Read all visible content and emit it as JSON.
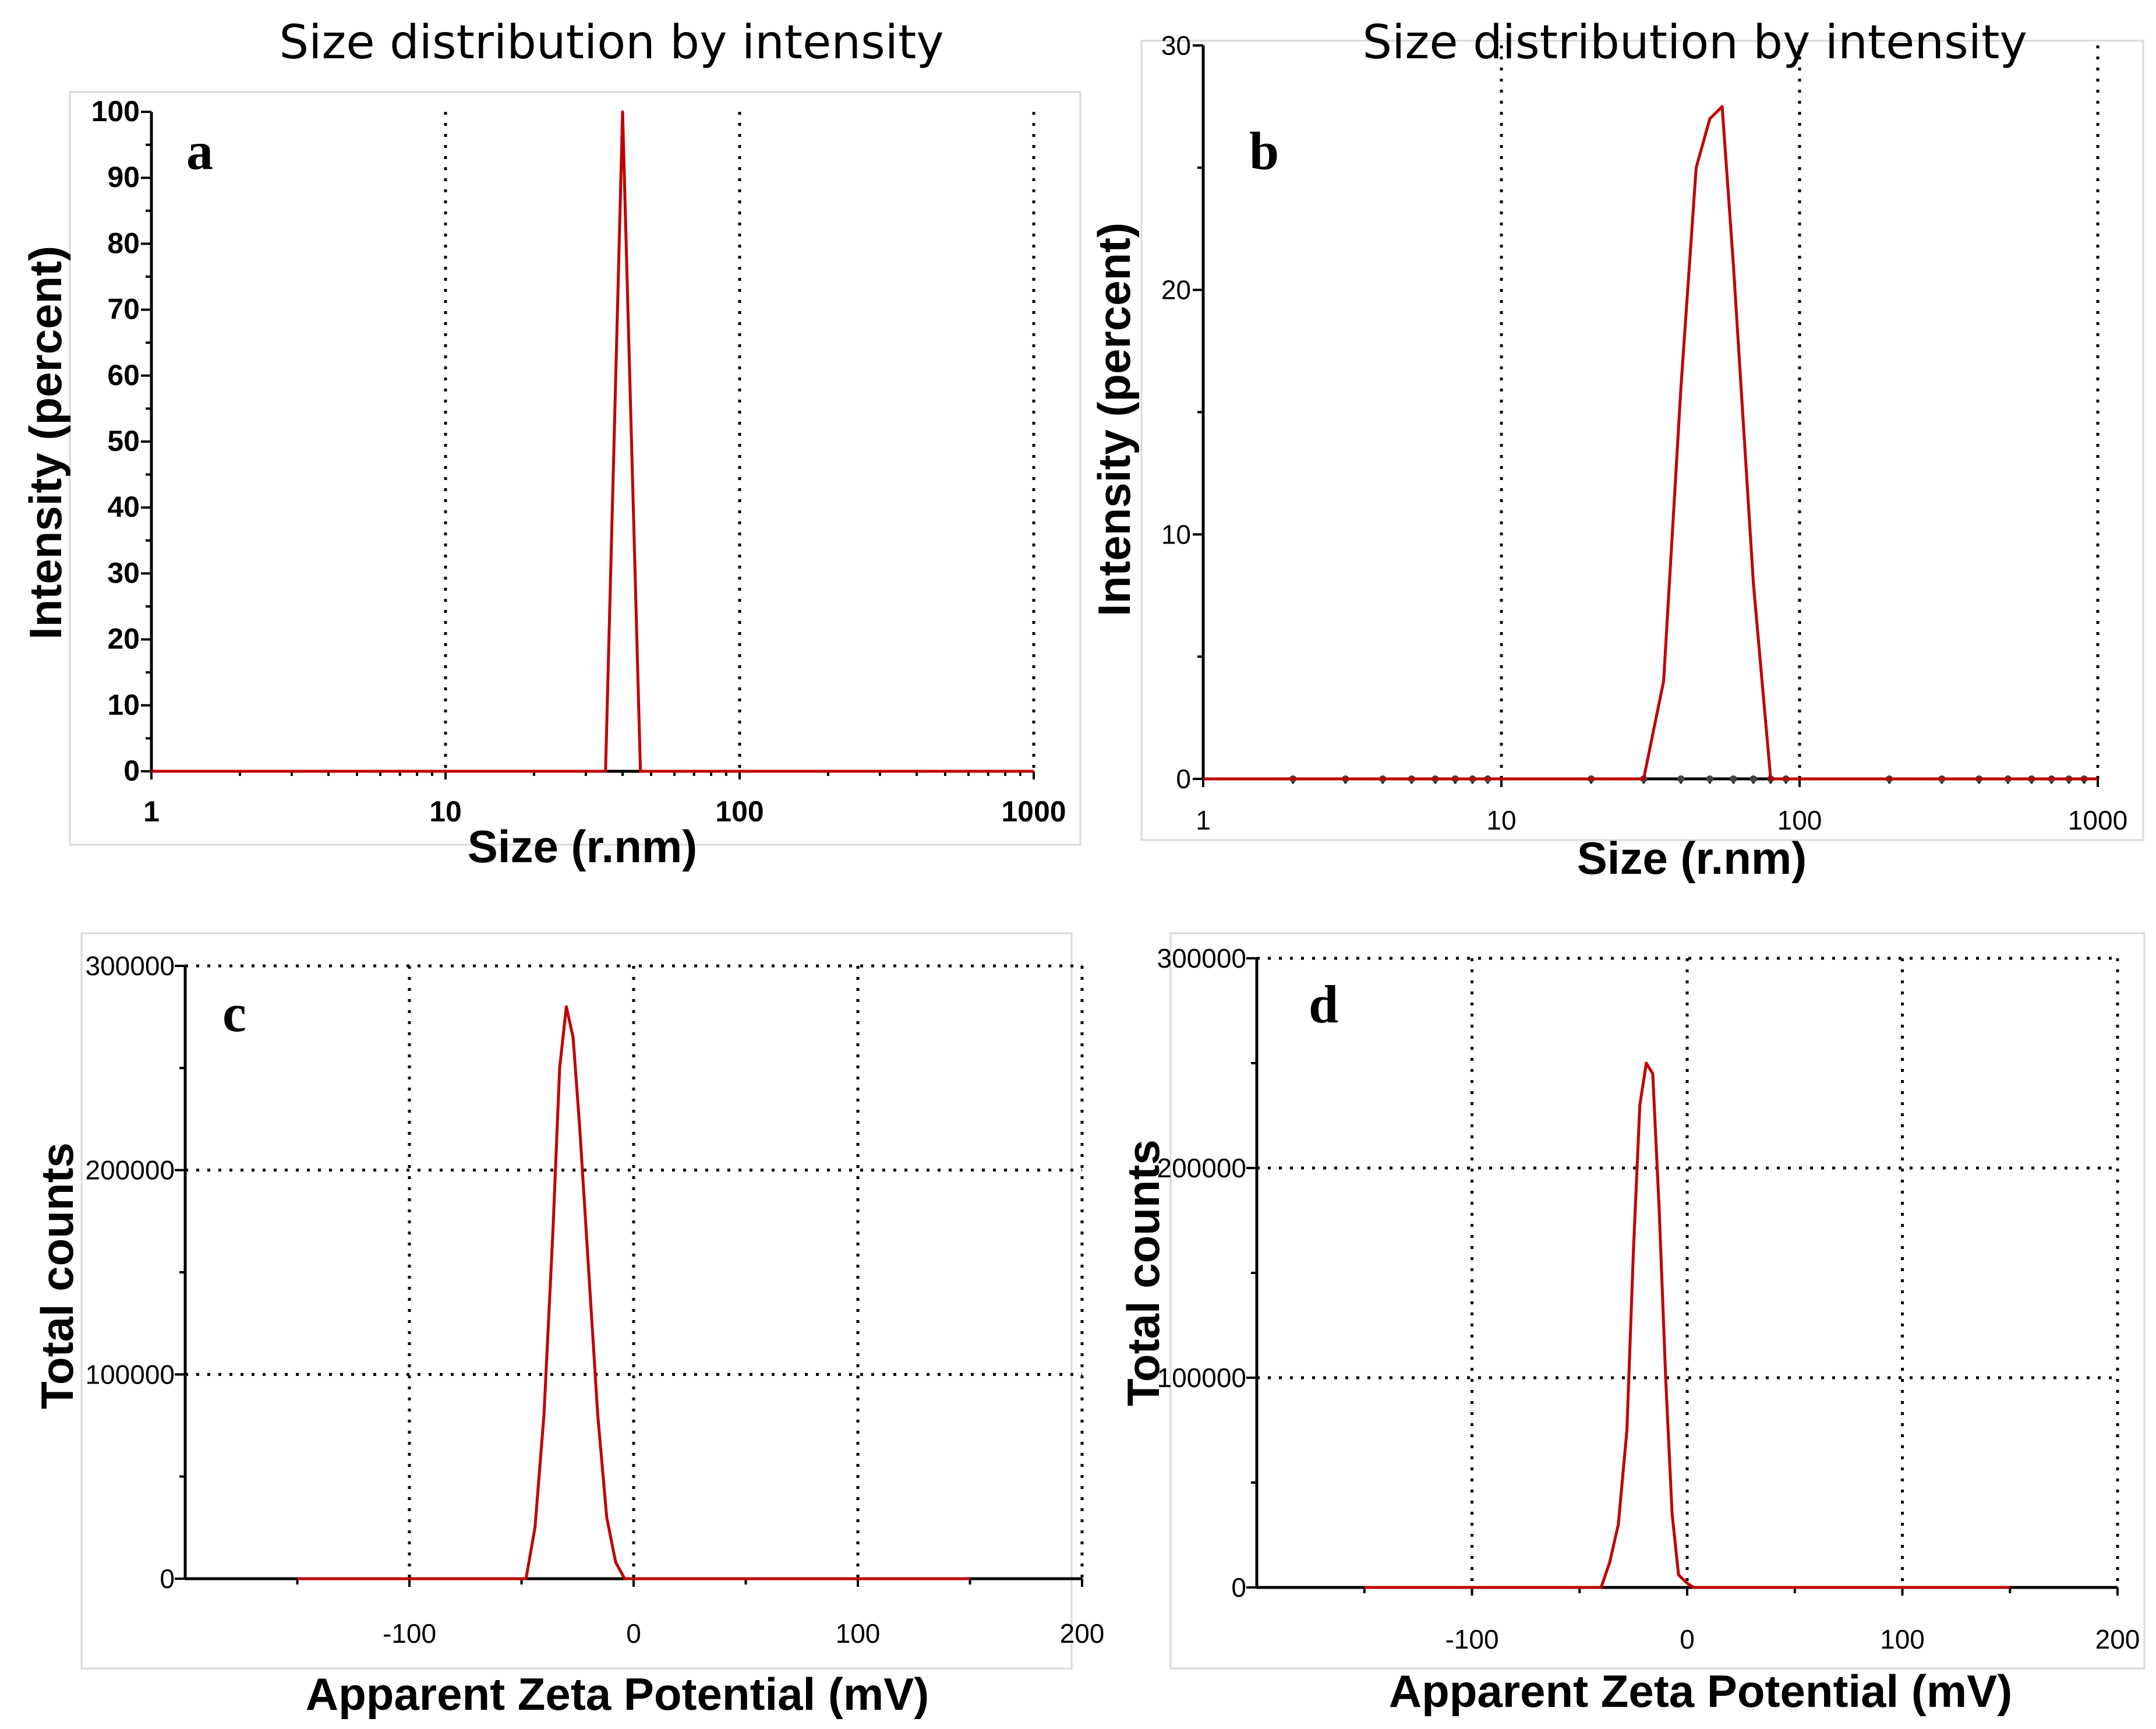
{
  "chart_data": [
    {
      "id": "a",
      "type": "line",
      "panel_label": "a",
      "title": "Size distribution by intensity",
      "xlabel": "Size (r.nm)",
      "ylabel": "Intensity (percent)",
      "x_scale": "log",
      "xlim": [
        1,
        1000
      ],
      "ylim": [
        0,
        100
      ],
      "x_ticks": [
        1,
        10,
        100,
        1000
      ],
      "x_tick_labels": [
        "1",
        "10",
        "100",
        "1000"
      ],
      "y_ticks": [
        0,
        10,
        20,
        30,
        40,
        50,
        60,
        70,
        80,
        90,
        100
      ],
      "y_tick_labels": [
        "0",
        "10",
        "20",
        "30",
        "40",
        "50",
        "60",
        "70",
        "80",
        "90",
        "100"
      ],
      "grid": "vertical dotted",
      "series": [
        {
          "name": "Intensity",
          "color": "#c00000",
          "x": [
            1,
            35,
            40,
            46,
            1000
          ],
          "y": [
            0,
            0,
            100,
            0,
            0
          ]
        }
      ]
    },
    {
      "id": "b",
      "type": "line",
      "panel_label": "b",
      "title": "Size distribution by intensity",
      "xlabel": "Size (r.nm)",
      "ylabel": "Intensity (percent)",
      "x_scale": "log",
      "xlim": [
        1,
        1000
      ],
      "ylim": [
        0,
        30
      ],
      "x_ticks": [
        1,
        10,
        100,
        1000
      ],
      "x_tick_labels": [
        "1",
        "10",
        "100",
        "1000"
      ],
      "y_ticks": [
        0,
        10,
        20,
        30
      ],
      "y_tick_labels": [
        "0",
        "10",
        "20",
        "30"
      ],
      "grid": "vertical dotted",
      "series": [
        {
          "name": "Intensity",
          "color": "#c00000",
          "x": [
            1,
            30,
            35,
            40,
            45,
            50,
            55,
            60,
            70,
            80,
            1000
          ],
          "y": [
            0,
            0,
            4,
            16,
            25,
            27,
            27.5,
            21,
            8,
            0,
            0
          ]
        }
      ]
    },
    {
      "id": "c",
      "type": "line",
      "panel_label": "c",
      "xlabel": "Apparent Zeta Potential (mV)",
      "ylabel": "Total counts",
      "xlim": [
        -200,
        200
      ],
      "ylim": [
        0,
        300000
      ],
      "x_ticks": [
        -100,
        0,
        100,
        200
      ],
      "x_tick_labels": [
        "-100",
        "0",
        "100",
        "200"
      ],
      "y_ticks": [
        0,
        100000,
        200000,
        300000
      ],
      "y_tick_labels": [
        "0",
        "100000",
        "200000",
        "300000"
      ],
      "grid": "both dotted",
      "series": [
        {
          "name": "Total counts",
          "color": "#c00000",
          "x": [
            -150,
            -48,
            -44,
            -40,
            -36,
            -33,
            -30,
            -27,
            -24,
            -20,
            -16,
            -12,
            -8,
            -4,
            150
          ],
          "y": [
            0,
            0,
            25000,
            80000,
            170000,
            250000,
            280000,
            265000,
            220000,
            150000,
            80000,
            30000,
            8000,
            0,
            0
          ]
        }
      ]
    },
    {
      "id": "d",
      "type": "line",
      "panel_label": "d",
      "xlabel": "Apparent Zeta Potential (mV)",
      "ylabel": "Total counts",
      "xlim": [
        -200,
        200
      ],
      "ylim": [
        0,
        300000
      ],
      "x_ticks": [
        -100,
        0,
        100,
        200
      ],
      "x_tick_labels": [
        "-100",
        "0",
        "100",
        "200"
      ],
      "y_ticks": [
        0,
        100000,
        200000,
        300000
      ],
      "y_tick_labels": [
        "0",
        "100000",
        "200000",
        "300000"
      ],
      "grid": "both dotted",
      "series": [
        {
          "name": "Total counts",
          "color": "#c00000",
          "x": [
            -150,
            -40,
            -36,
            -32,
            -28,
            -25,
            -22,
            -19,
            -16,
            -13,
            -10,
            -7,
            -4,
            0,
            3,
            150
          ],
          "y": [
            0,
            0,
            12000,
            30000,
            75000,
            160000,
            230000,
            250000,
            245000,
            180000,
            100000,
            35000,
            6000,
            2000,
            0,
            0
          ]
        }
      ]
    }
  ]
}
